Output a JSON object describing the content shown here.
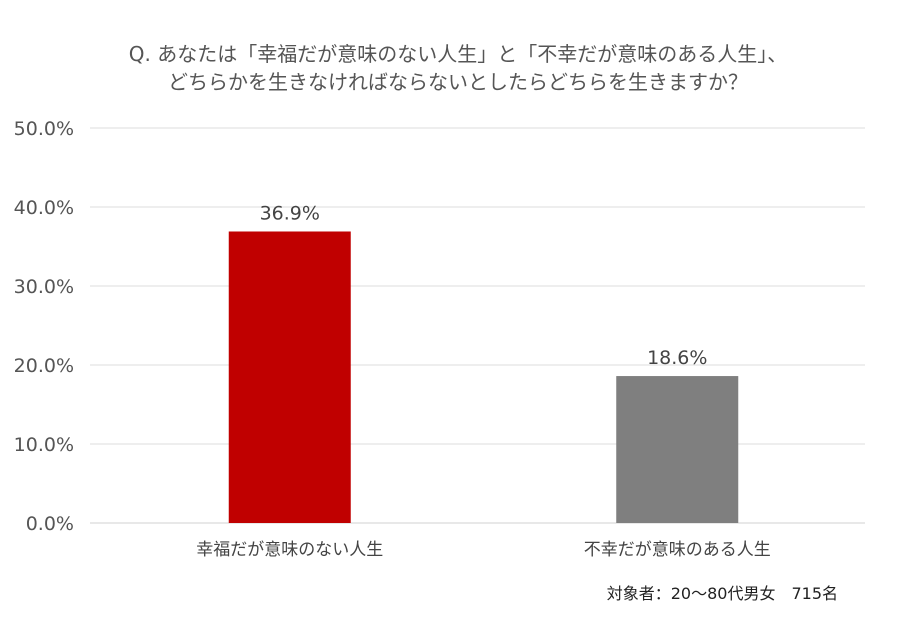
{
  "title_lines": [
    "Q. あなたは「幸福だが意味のない人生」と「不幸だが意味のある人生」、",
    "どちらかを生きなければならないとしたらどちらを生きますか？"
  ],
  "chart_data": {
    "type": "bar",
    "title": "Q. あなたは「幸福だが意味のない人生」と「不幸だが意味のある人生」、どちらかを生きなければならないとしたらどちらを生きますか？",
    "categories": [
      "幸福だが意味のない人生",
      "不幸だが意味のある人生"
    ],
    "values": [
      36.9,
      18.6
    ],
    "value_labels": [
      "36.9%",
      "18.6%"
    ],
    "colors": [
      "#c00000",
      "#7f7f7f"
    ],
    "ylim": [
      0,
      50
    ],
    "yticks": [
      0,
      10,
      20,
      30,
      40,
      50
    ],
    "ytick_labels": [
      "0.0%",
      "10.0%",
      "20.0%",
      "30.0%",
      "40.0%",
      "50.0%"
    ],
    "grid": true,
    "legend": "none",
    "xlabel": "",
    "ylabel": ""
  },
  "footnote": "対象者：20～80代男女　715名"
}
